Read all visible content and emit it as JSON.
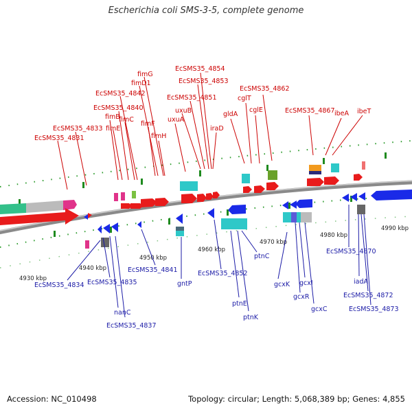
{
  "title": "Escherichia coli SMS-3-5, complete genome",
  "footer": {
    "accession": "Accession: NC_010498",
    "summary": "Topology: circular; Length: 5,068,389 bp; Genes: 4,855"
  },
  "colors": {
    "forward_label": "#cc0000",
    "reverse_label": "#1a1aa6",
    "backbone": "#999999"
  },
  "ticks": [
    "4930 kbp",
    "4940 kbp",
    "4950 kbp",
    "4960 kbp",
    "4970 kbp",
    "4980 kbp",
    "4990 kbp"
  ],
  "forward_labels": [
    "EcSMS35_4831",
    "EcSMS35_4833",
    "fimE",
    "fimB",
    "EcSMS35_4840",
    "fimC",
    "EcSMS35_4842",
    "fimD1",
    "fimG",
    "fimF",
    "fimH",
    "uxuA",
    "uxuB",
    "EcSMS35_4851",
    "EcSMS35_4853",
    "EcSMS35_4854",
    "iraD",
    "gldA",
    "cglT",
    "cglE",
    "EcSMS35_4862",
    "EcSMS35_4867",
    "ibeA",
    "ibeT"
  ],
  "reverse_labels": [
    "EcSMS35_4834",
    "EcSMS35_4835",
    "nanC",
    "EcSMS35_4837",
    "EcSMS35_4841",
    "gntP",
    "EcSMS35_4852",
    "ptnE",
    "ptnK",
    "ptnC",
    "gcxK",
    "gcxR",
    "gcxI",
    "gcxC",
    "EcSMS35_4870",
    "iadA",
    "EcSMS35_4872",
    "EcSMS35_4873"
  ]
}
